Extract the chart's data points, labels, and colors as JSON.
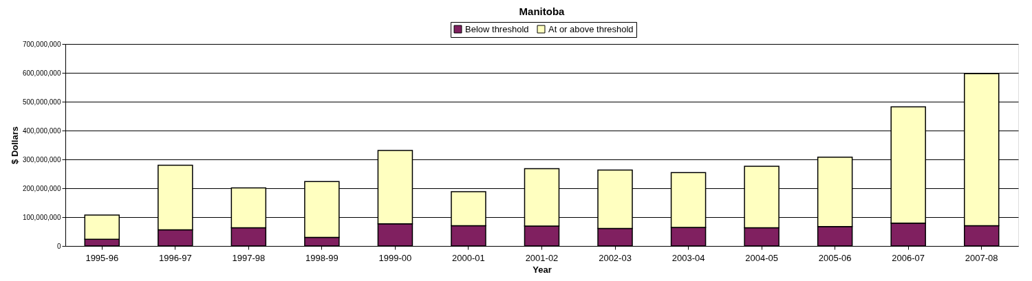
{
  "chart_data": {
    "type": "bar",
    "title": "Manitoba",
    "xlabel": "Year",
    "ylabel": "$ Dollars",
    "categories": [
      "1995-96",
      "1996-97",
      "1997-98",
      "1998-99",
      "1999-00",
      "2000-01",
      "2001-02",
      "2002-03",
      "2003-04",
      "2004-05",
      "2005-06",
      "2006-07",
      "2007-08"
    ],
    "series": [
      {
        "name": "Below threshold",
        "color": "#802060",
        "values": [
          23000000,
          56000000,
          63000000,
          30000000,
          77000000,
          70000000,
          69000000,
          61000000,
          64000000,
          63000000,
          67000000,
          79000000,
          70000000
        ]
      },
      {
        "name": "At or above threshold",
        "color": "#ffffc0",
        "values": [
          84000000,
          224000000,
          138000000,
          193000000,
          254000000,
          118000000,
          199000000,
          202000000,
          190000000,
          213000000,
          241000000,
          403000000,
          527000000
        ]
      }
    ],
    "stacked": true,
    "ylim": [
      0,
      700000000
    ],
    "yticks": [
      0,
      {
        "value": 100000000,
        "label": "100,000,000"
      },
      {
        "value": 200000000,
        "label": "200,000,000"
      },
      {
        "value": 300000000,
        "label": "300,000,000"
      },
      {
        "value": 400000000,
        "label": "400,000,000"
      },
      {
        "value": 500000000,
        "label": "500,000,000"
      },
      {
        "value": 600000000,
        "label": "600,000,000"
      },
      {
        "value": 700000000,
        "label": "700,000,000"
      }
    ],
    "grid": "y",
    "legend": "top"
  }
}
